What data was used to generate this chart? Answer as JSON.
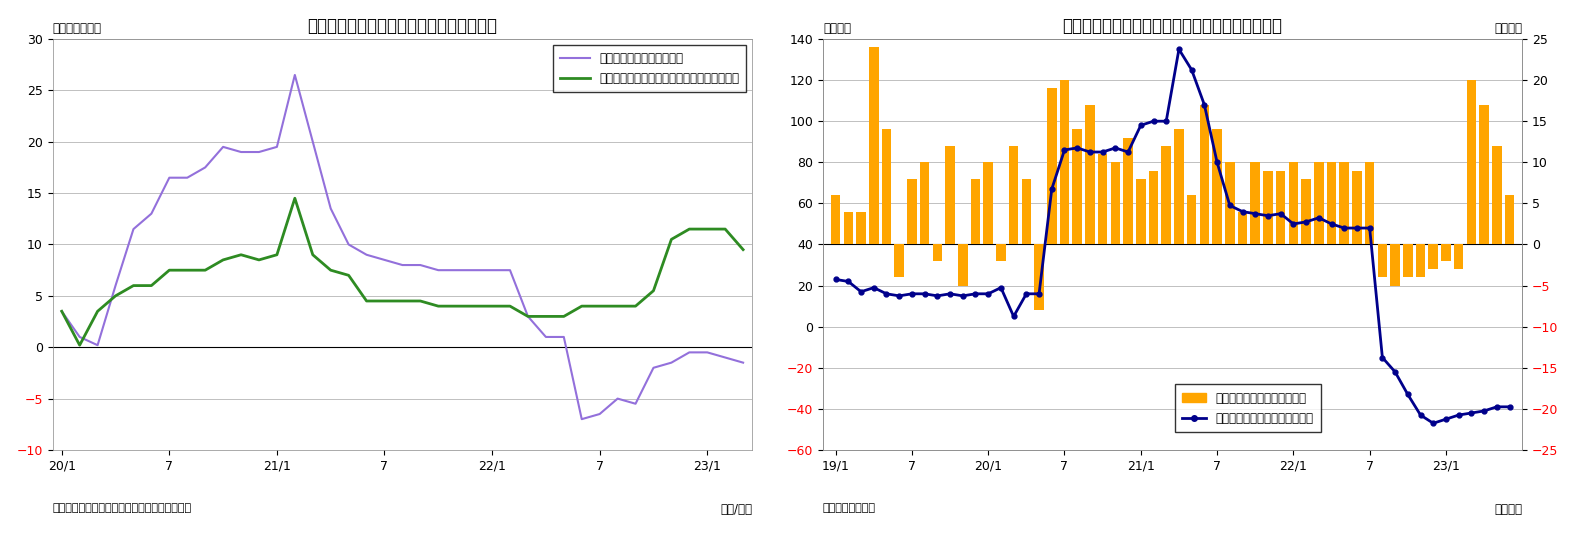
{
  "chart8": {
    "title": "（図表８）マネタリーベース残高の伸び率",
    "ylabel": "（前年比：％）",
    "xlabel": "（年/月）",
    "source": "（資料）日本銀行よりニッセイ基礎研究所作成",
    "ylim": [
      -10,
      30
    ],
    "yticks": [
      -10,
      -5,
      0,
      5,
      10,
      15,
      20,
      25,
      30
    ],
    "xtick_labels": [
      "20/1",
      "7",
      "21/1",
      "7",
      "22/1",
      "7",
      "23/1"
    ],
    "xtick_positions": [
      0,
      6,
      12,
      18,
      24,
      30,
      36
    ],
    "line1_label": "マネタリーベース（末残）",
    "line1_color": "#9370DB",
    "line2_label": "マネタリーベース（除くコロナオペ・末残）",
    "line2_color": "#2E8B22",
    "line1_y": [
      3.5,
      1.0,
      0.2,
      6.0,
      11.5,
      13.0,
      16.5,
      16.5,
      17.5,
      19.5,
      19.0,
      19.0,
      19.5,
      26.5,
      20.0,
      13.5,
      10.0,
      9.0,
      8.5,
      8.0,
      8.0,
      7.5,
      7.5,
      7.5,
      7.5,
      7.5,
      3.0,
      1.0,
      1.0,
      -7.0,
      -6.5,
      -5.0,
      -5.5,
      -2.0,
      -1.5,
      -0.5,
      -0.5,
      -1.0,
      -1.5
    ],
    "line2_y": [
      3.5,
      0.2,
      3.5,
      5.0,
      6.0,
      6.0,
      7.5,
      7.5,
      7.5,
      8.5,
      9.0,
      8.5,
      9.0,
      14.5,
      9.0,
      7.5,
      7.0,
      4.5,
      4.5,
      4.5,
      4.5,
      4.0,
      4.0,
      4.0,
      4.0,
      4.0,
      3.0,
      3.0,
      3.0,
      4.0,
      4.0,
      4.0,
      4.0,
      5.5,
      10.5,
      11.5,
      11.5,
      11.5,
      9.5
    ]
  },
  "chart9": {
    "title": "（図表９）マネタリーベース残高と前月比の推移",
    "ylabel_left": "（兆円）",
    "ylabel_right": "（兆円）",
    "xlabel": "（年月）",
    "source": "（資料）日本銀行",
    "ylim_left": [
      -60,
      140
    ],
    "ylim_right": [
      -25,
      25
    ],
    "yticks_left": [
      -60,
      -40,
      -20,
      0,
      20,
      40,
      60,
      80,
      100,
      120,
      140
    ],
    "yticks_right": [
      -25,
      -20,
      -15,
      -10,
      -5,
      0,
      5,
      10,
      15,
      20,
      25
    ],
    "xtick_labels": [
      "19/1",
      "7",
      "20/1",
      "7",
      "21/1",
      "7",
      "22/1",
      "7",
      "23/1"
    ],
    "xtick_positions": [
      0,
      6,
      12,
      18,
      24,
      30,
      36,
      42,
      48
    ],
    "bar_label": "季節調整済み前月差（右軸）",
    "bar_color": "#FFA500",
    "line_label": "マネタリーベース末残の前年差",
    "line_color": "#00008B",
    "bar_y": [
      6,
      4,
      4,
      24,
      14,
      -4,
      8,
      10,
      -2,
      12,
      -5,
      8,
      10,
      -2,
      12,
      8,
      -8,
      19,
      20,
      14,
      17,
      11,
      10,
      13,
      8,
      9,
      12,
      14,
      6,
      17,
      14,
      10,
      4,
      10,
      9,
      9,
      10,
      8,
      10,
      10,
      10,
      9,
      10,
      -4,
      -5,
      -4,
      -4,
      -3,
      -2,
      -3,
      20,
      17,
      12,
      6
    ],
    "line_y": [
      23,
      22,
      17,
      19,
      16,
      15,
      16,
      16,
      15,
      16,
      15,
      16,
      16,
      19,
      5,
      16,
      16,
      67,
      86,
      87,
      85,
      85,
      87,
      85,
      98,
      100,
      100,
      135,
      125,
      108,
      80,
      59,
      56,
      55,
      54,
      55,
      50,
      51,
      53,
      50,
      48,
      48,
      48,
      -15,
      -22,
      -33,
      -43,
      -47,
      -45,
      -43,
      -42,
      -41,
      -39,
      -39
    ]
  }
}
